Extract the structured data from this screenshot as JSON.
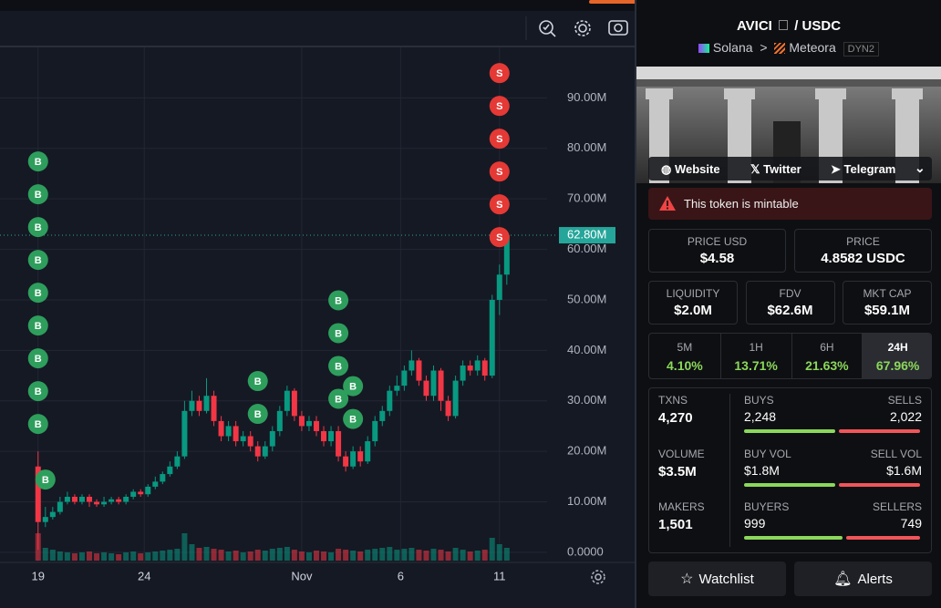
{
  "chart_data": {
    "type": "candlestick",
    "xlim": [
      -5.2,
      69.5
    ],
    "xticks": [
      {
        "value": 0,
        "label": "19"
      },
      {
        "value": 14.5,
        "label": "24"
      },
      {
        "value": 36,
        "label": "Nov"
      },
      {
        "value": 49.5,
        "label": "6"
      },
      {
        "value": 63,
        "label": "11"
      }
    ],
    "ylim": [
      -2,
      100
    ],
    "yticks": [
      {
        "value": 0,
        "label": "0.0000"
      },
      {
        "value": 10,
        "label": "10.00M"
      },
      {
        "value": 20,
        "label": "20.00M"
      },
      {
        "value": 30,
        "label": "30.00M"
      },
      {
        "value": 40,
        "label": "40.00M"
      },
      {
        "value": 50,
        "label": "50.00M"
      },
      {
        "value": 60,
        "label": "60.00M"
      },
      {
        "value": 70,
        "label": "70.00M"
      },
      {
        "value": 80,
        "label": "80.00M"
      },
      {
        "value": 90,
        "label": "90.00M"
      }
    ],
    "grid": true,
    "up_color": "#089981",
    "down_color": "#f23645",
    "x": [
      0,
      1,
      2,
      3,
      4,
      5,
      6,
      7,
      8,
      9,
      10,
      11,
      12,
      13,
      14,
      15,
      16,
      17,
      18,
      19,
      20,
      21,
      22,
      23,
      24,
      25,
      26,
      27,
      28,
      29,
      30,
      31,
      32,
      33,
      34,
      35,
      36,
      37,
      38,
      39,
      40,
      41,
      42,
      43,
      44,
      45,
      46,
      47,
      48,
      49,
      50,
      51,
      52,
      53,
      54,
      55,
      56,
      57,
      58,
      59,
      60,
      61,
      62,
      63,
      64
    ],
    "open": [
      17,
      6,
      7,
      8,
      10,
      11,
      10,
      11,
      10,
      9.5,
      10,
      10.5,
      10,
      11,
      12,
      11.5,
      13,
      14,
      15.5,
      17,
      19,
      28,
      30,
      28,
      31,
      26,
      23,
      25,
      22,
      23,
      21,
      19,
      21,
      24,
      28,
      32,
      27,
      25,
      26,
      24,
      22,
      24,
      19,
      17,
      20,
      18,
      22,
      26,
      28,
      32,
      33,
      36,
      38,
      34,
      31,
      36,
      30,
      27,
      34,
      37,
      36,
      38,
      35,
      50,
      55
    ],
    "high": [
      20,
      9,
      9,
      11,
      12,
      11.5,
      11.5,
      11.5,
      10.5,
      11,
      11,
      11,
      11.5,
      12.5,
      12.5,
      13.5,
      15,
      16,
      18,
      20,
      30,
      32,
      31,
      34.5,
      32,
      27,
      26,
      26,
      24,
      24,
      22,
      22,
      25,
      29,
      33,
      32.5,
      28,
      27,
      27,
      25,
      25,
      25,
      20,
      21,
      21,
      23,
      27,
      29,
      33,
      35,
      37,
      40,
      38.5,
      35,
      37,
      36.5,
      31,
      35,
      38,
      38,
      39,
      38.5,
      51,
      57,
      63
    ],
    "low": [
      0.5,
      5,
      6.5,
      7.5,
      9.5,
      9.5,
      9.5,
      9,
      9,
      9,
      9.5,
      9.5,
      9.5,
      10.5,
      11,
      11,
      12.5,
      13.5,
      15,
      16.5,
      18.5,
      27,
      27,
      27.5,
      25,
      22,
      22,
      21,
      21,
      20,
      18,
      18.5,
      20,
      23,
      27,
      26,
      24,
      24,
      23,
      21,
      21,
      18,
      16,
      16.5,
      17,
      17.5,
      21,
      25,
      27,
      31,
      32,
      35,
      33,
      30,
      30,
      28,
      26,
      26.5,
      33,
      35,
      35,
      34,
      34.5,
      47,
      53
    ],
    "close": [
      6,
      7,
      8,
      10,
      11,
      10,
      11,
      10,
      9.5,
      10,
      10.5,
      10,
      11,
      12,
      11.5,
      13,
      14,
      15.5,
      17,
      19,
      28,
      30,
      28,
      31,
      26,
      23,
      25,
      22,
      23,
      21,
      19,
      21,
      24,
      28,
      32,
      27,
      25,
      26,
      24,
      22,
      24,
      19,
      17,
      20,
      18,
      22,
      26,
      28,
      32,
      33,
      36,
      38,
      34,
      31,
      36,
      30,
      27,
      34,
      37,
      36,
      38,
      35,
      50,
      55,
      62.8
    ],
    "volume": [
      30,
      14,
      12,
      10,
      9,
      8,
      9,
      10,
      8,
      9,
      8,
      7,
      9,
      10,
      8,
      9,
      10,
      11,
      12,
      13,
      30,
      18,
      14,
      15,
      13,
      12,
      10,
      11,
      9,
      10,
      12,
      11,
      13,
      14,
      15,
      12,
      10,
      9,
      11,
      10,
      9,
      13,
      12,
      11,
      10,
      12,
      13,
      14,
      15,
      12,
      13,
      14,
      12,
      11,
      13,
      12,
      10,
      14,
      12,
      10,
      11,
      12,
      25,
      18,
      14
    ],
    "vlim": [
      0,
      60
    ],
    "markers": [
      {
        "label": "B",
        "x": 0,
        "count": 9
      },
      {
        "label": "B",
        "x": 1,
        "count": 1
      },
      {
        "label": "B",
        "x": 30,
        "count": 2
      },
      {
        "label": "B",
        "x": 41,
        "count": 4
      },
      {
        "label": "B",
        "x": 43,
        "count": 2
      },
      {
        "label": "S",
        "x": 63,
        "count": 6
      }
    ],
    "last_price": {
      "value": 62.8,
      "label": "62.80M"
    }
  },
  "panel": {
    "pair": {
      "base": "AVICI",
      "quote": "/ USDC"
    },
    "chain": "Solana",
    "separator": ">",
    "dex": "Meteora",
    "pool_tag": "DYN2",
    "links": [
      "Website",
      "Twitter",
      "Telegram"
    ],
    "warning": "This token is mintable",
    "prices": [
      {
        "label": "PRICE USD",
        "value": "$4.58"
      },
      {
        "label": "PRICE",
        "value": "4.8582 USDC"
      }
    ],
    "metrics": [
      {
        "label": "LIQUIDITY",
        "value": "$2.0M"
      },
      {
        "label": "FDV",
        "value": "$62.6M"
      },
      {
        "label": "MKT CAP",
        "value": "$59.1M"
      }
    ],
    "timeframes": [
      {
        "label": "5M",
        "change": "4.10%"
      },
      {
        "label": "1H",
        "change": "13.71%"
      },
      {
        "label": "6H",
        "change": "21.63%"
      },
      {
        "label": "24H",
        "change": "67.96%"
      }
    ],
    "selected_timeframe": 3,
    "stats": [
      {
        "label": "TXNS",
        "value": "4,270",
        "left_label": "BUYS",
        "left": {
          "value": 2248,
          "label": "2,248"
        },
        "right_label": "SELLS",
        "right": {
          "value": 2022,
          "label": "2,022"
        }
      },
      {
        "label": "VOLUME",
        "value": "$3.5M",
        "left_label": "BUY VOL",
        "left": {
          "value": 1.8,
          "label": "$1.8M"
        },
        "right_label": "SELL VOL",
        "right": {
          "value": 1.6,
          "label": "$1.6M"
        }
      },
      {
        "label": "MAKERS",
        "value": "1,501",
        "left_label": "BUYERS",
        "left": 999,
        "right_label": "SELLERS",
        "right": 749
      }
    ],
    "buttons": [
      "Watchlist",
      "Alerts"
    ]
  }
}
